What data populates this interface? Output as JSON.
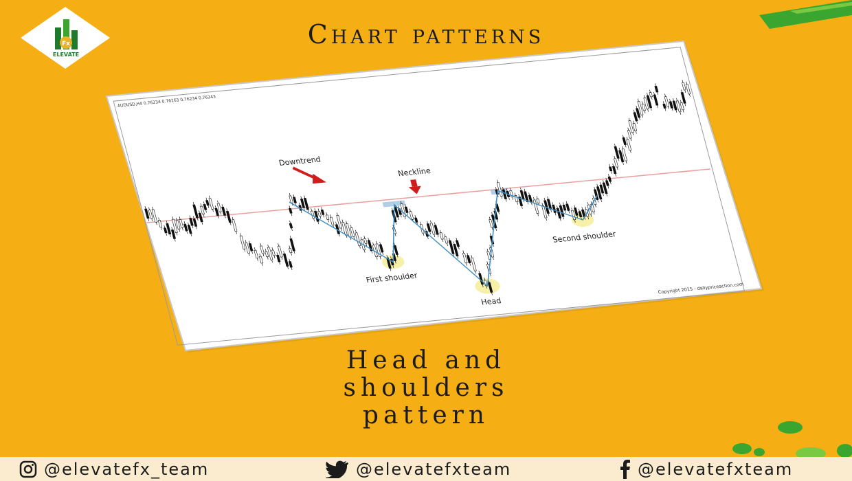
{
  "header": {
    "logo_text": "ELEVATE",
    "logo_badge": "Fx",
    "title": "Chart patterns"
  },
  "chart": {
    "ticker_text": "AUDUSD,H4  0.76234 0.76263 0.76234 0.76243",
    "labels": {
      "downtrend": "Downtrend",
      "neckline": "Neckline",
      "first_shoulder": "First shoulder",
      "head": "Head",
      "second_shoulder": "Second shoulder",
      "copyright": "Copyright 2015 - dailypriceaction.com"
    }
  },
  "subtitle": {
    "line1": "Head and",
    "line2": "shoulders",
    "line3": "pattern"
  },
  "footer": {
    "instagram": "@elevatefx_team",
    "twitter": "@elevatefxteam",
    "facebook": "@elevatefxteam"
  },
  "colors": {
    "background": "#f5ae13",
    "green_accent": "#3aa62f",
    "neckline": "#e8a0a0",
    "pattern_line": "#3d8fc4",
    "highlight": "#f7f0a8",
    "arrow": "#d01c1c"
  }
}
